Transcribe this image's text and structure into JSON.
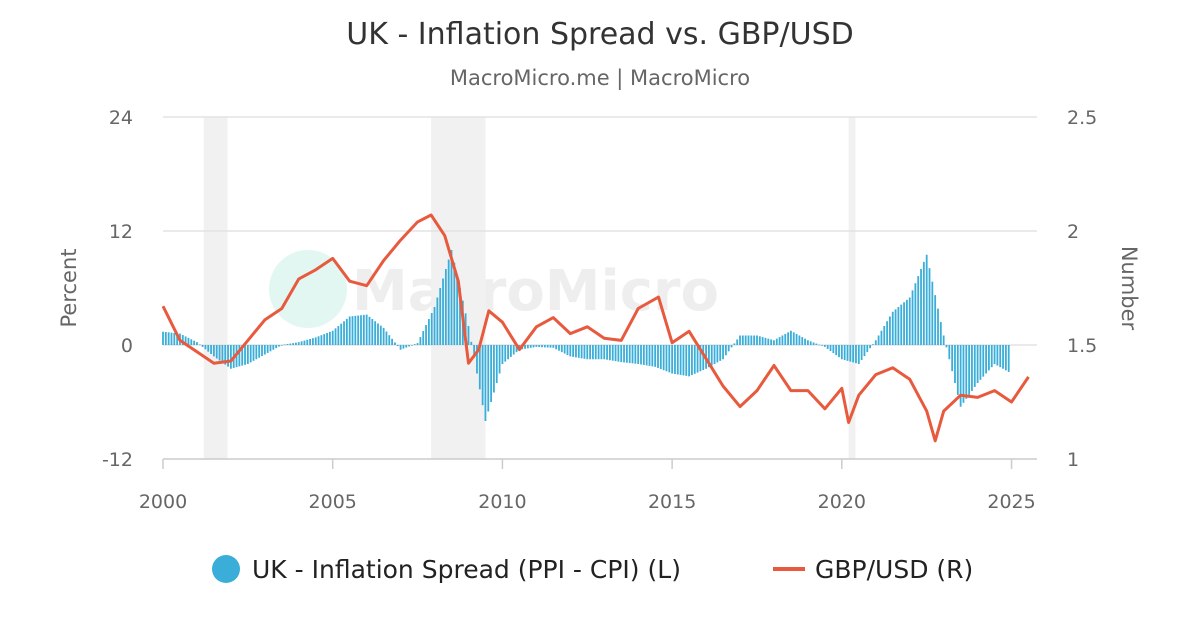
{
  "chart_data": {
    "type": "bar",
    "title": "UK - Inflation Spread vs. GBP/USD",
    "subtitle": "MacroMicro.me | MacroMicro",
    "watermark": "MacroMicro",
    "left_axis": {
      "label": "Percent",
      "min": -12,
      "max": 24,
      "ticks": [
        "24",
        "12",
        "0",
        "-12"
      ],
      "tick_values": [
        24,
        12,
        0,
        -12
      ]
    },
    "right_axis": {
      "label": "Number",
      "min": 1,
      "max": 2.5,
      "ticks": [
        "2.5",
        "2",
        "1.5",
        "1"
      ],
      "tick_values": [
        2.5,
        2,
        1.5,
        1
      ]
    },
    "x_axis": {
      "min": 2000,
      "max": 2025.75,
      "ticks": [
        "2000",
        "2005",
        "2010",
        "2015",
        "2020",
        "2025"
      ],
      "tick_values": [
        2000,
        2005,
        2010,
        2015,
        2020,
        2025
      ]
    },
    "grid": true,
    "legend_position": "bottom",
    "recession_bands": [
      [
        2001.2,
        2001.9
      ],
      [
        2007.9,
        2009.5
      ],
      [
        2020.2,
        2020.4
      ]
    ],
    "series": [
      {
        "name": "UK - Inflation Spread (PPI - CPI) (L)",
        "type": "bar",
        "axis": "left",
        "color": "#3aaed8",
        "points": [
          [
            2000.0,
            1.4
          ],
          [
            2000.5,
            1.2
          ],
          [
            2001.0,
            0.3
          ],
          [
            2001.5,
            -1.2
          ],
          [
            2002.0,
            -2.5
          ],
          [
            2002.5,
            -2.0
          ],
          [
            2003.0,
            -1.0
          ],
          [
            2003.5,
            0.0
          ],
          [
            2004.0,
            0.3
          ],
          [
            2004.5,
            0.8
          ],
          [
            2005.0,
            1.5
          ],
          [
            2005.5,
            3.0
          ],
          [
            2006.0,
            3.2
          ],
          [
            2006.5,
            1.8
          ],
          [
            2007.0,
            -0.5
          ],
          [
            2007.5,
            0.2
          ],
          [
            2008.0,
            4.0
          ],
          [
            2008.5,
            10.0
          ],
          [
            2009.0,
            2.0
          ],
          [
            2009.5,
            -8.0
          ],
          [
            2010.0,
            -2.0
          ],
          [
            2010.5,
            -0.5
          ],
          [
            2011.0,
            -0.2
          ],
          [
            2011.5,
            -0.3
          ],
          [
            2012.0,
            -1.2
          ],
          [
            2012.5,
            -1.5
          ],
          [
            2013.0,
            -1.5
          ],
          [
            2013.5,
            -1.8
          ],
          [
            2014.0,
            -2.0
          ],
          [
            2014.5,
            -2.3
          ],
          [
            2015.0,
            -3.0
          ],
          [
            2015.5,
            -3.3
          ],
          [
            2016.0,
            -2.5
          ],
          [
            2016.5,
            -1.5
          ],
          [
            2017.0,
            1.0
          ],
          [
            2017.5,
            1.0
          ],
          [
            2018.0,
            0.5
          ],
          [
            2018.5,
            1.5
          ],
          [
            2019.0,
            0.5
          ],
          [
            2019.5,
            -0.2
          ],
          [
            2020.0,
            -1.5
          ],
          [
            2020.5,
            -2.0
          ],
          [
            2021.0,
            0.5
          ],
          [
            2021.5,
            3.5
          ],
          [
            2022.0,
            5.0
          ],
          [
            2022.5,
            9.5
          ],
          [
            2023.0,
            1.0
          ],
          [
            2023.5,
            -6.5
          ],
          [
            2024.0,
            -4.0
          ],
          [
            2024.5,
            -2.0
          ],
          [
            2025.0,
            -3.0
          ]
        ]
      },
      {
        "name": "GBP/USD (R)",
        "type": "line",
        "axis": "right",
        "color": "#e85a3d",
        "points": [
          [
            2000.0,
            1.67
          ],
          [
            2000.5,
            1.52
          ],
          [
            2001.0,
            1.47
          ],
          [
            2001.5,
            1.42
          ],
          [
            2002.0,
            1.43
          ],
          [
            2002.5,
            1.52
          ],
          [
            2003.0,
            1.61
          ],
          [
            2003.5,
            1.66
          ],
          [
            2004.0,
            1.79
          ],
          [
            2004.5,
            1.83
          ],
          [
            2005.0,
            1.88
          ],
          [
            2005.5,
            1.78
          ],
          [
            2006.0,
            1.76
          ],
          [
            2006.5,
            1.87
          ],
          [
            2007.0,
            1.96
          ],
          [
            2007.5,
            2.04
          ],
          [
            2007.9,
            2.07
          ],
          [
            2008.3,
            1.98
          ],
          [
            2008.7,
            1.78
          ],
          [
            2009.0,
            1.42
          ],
          [
            2009.3,
            1.48
          ],
          [
            2009.6,
            1.65
          ],
          [
            2010.0,
            1.6
          ],
          [
            2010.5,
            1.48
          ],
          [
            2011.0,
            1.58
          ],
          [
            2011.5,
            1.62
          ],
          [
            2012.0,
            1.55
          ],
          [
            2012.5,
            1.58
          ],
          [
            2013.0,
            1.53
          ],
          [
            2013.5,
            1.52
          ],
          [
            2014.0,
            1.66
          ],
          [
            2014.6,
            1.71
          ],
          [
            2015.0,
            1.51
          ],
          [
            2015.5,
            1.56
          ],
          [
            2016.0,
            1.44
          ],
          [
            2016.5,
            1.32
          ],
          [
            2017.0,
            1.23
          ],
          [
            2017.5,
            1.3
          ],
          [
            2018.0,
            1.41
          ],
          [
            2018.5,
            1.3
          ],
          [
            2019.0,
            1.3
          ],
          [
            2019.5,
            1.22
          ],
          [
            2020.0,
            1.31
          ],
          [
            2020.2,
            1.16
          ],
          [
            2020.5,
            1.28
          ],
          [
            2021.0,
            1.37
          ],
          [
            2021.5,
            1.4
          ],
          [
            2022.0,
            1.35
          ],
          [
            2022.5,
            1.21
          ],
          [
            2022.75,
            1.08
          ],
          [
            2023.0,
            1.21
          ],
          [
            2023.5,
            1.28
          ],
          [
            2024.0,
            1.27
          ],
          [
            2024.5,
            1.3
          ],
          [
            2025.0,
            1.25
          ],
          [
            2025.5,
            1.36
          ]
        ]
      }
    ]
  }
}
